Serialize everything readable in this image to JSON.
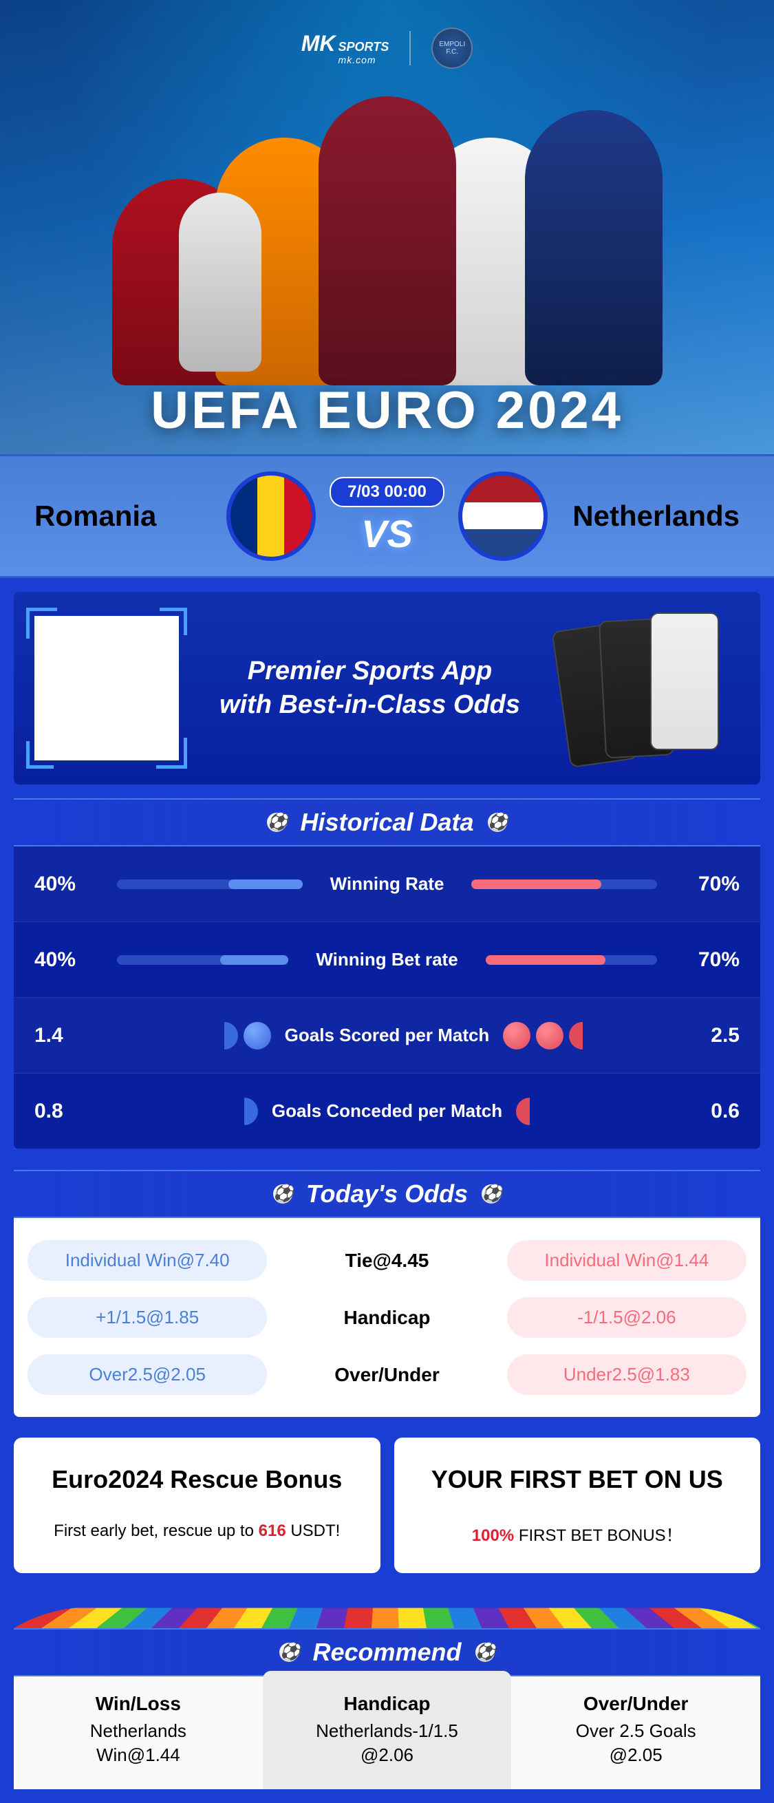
{
  "brand": {
    "name": "MK",
    "tagline": "SPORTS",
    "domain": "mk.com",
    "club_badge_text": "EMPOLI F.C."
  },
  "hero": {
    "title": "UEFA EURO 2024"
  },
  "match": {
    "team_left": "Romania",
    "team_right": "Netherlands",
    "datetime": "7/03 00:00",
    "vs": "VS"
  },
  "promo": {
    "line1": "Premier Sports App",
    "line2": "with Best-in-Class Odds"
  },
  "historical": {
    "title": "Historical Data",
    "rows": [
      {
        "label": "Winning Rate",
        "left_value": "40%",
        "right_value": "70%",
        "left_bar_pct": 40,
        "right_bar_pct": 70,
        "type": "bar"
      },
      {
        "label": "Winning Bet rate",
        "left_value": "40%",
        "right_value": "70%",
        "left_bar_pct": 40,
        "right_bar_pct": 70,
        "type": "bar"
      },
      {
        "label": "Goals Scored per Match",
        "left_value": "1.4",
        "right_value": "2.5",
        "left_balls": 1.4,
        "right_balls": 2.5,
        "type": "balls"
      },
      {
        "label": "Goals Conceded per Match",
        "left_value": "0.8",
        "right_value": "0.6",
        "left_balls": 0.8,
        "right_balls": 0.6,
        "type": "balls"
      }
    ],
    "colors": {
      "left_bar": "#5b8def",
      "right_bar": "#f86b7a",
      "track": "#2a4ac0",
      "ball_left": "#3a6ae0",
      "ball_right": "#e04a5a"
    }
  },
  "odds": {
    "title": "Today's Odds",
    "rows": [
      {
        "left": "Individual Win@7.40",
        "center": "Tie@4.45",
        "right": "Individual Win@1.44"
      },
      {
        "left": "+1/1.5@1.85",
        "center": "Handicap",
        "right": "-1/1.5@2.06"
      },
      {
        "left": "Over2.5@2.05",
        "center": "Over/Under",
        "right": "Under2.5@1.83"
      }
    ],
    "colors": {
      "left_pill_bg": "#e8f0ff",
      "left_pill_text": "#4a7fd8",
      "right_pill_bg": "#ffe8ec",
      "right_pill_text": "#f86b7a"
    }
  },
  "bonuses": [
    {
      "title": "Euro2024 Rescue Bonus",
      "sub_pre": "First early bet, rescue up to ",
      "sub_accent": "616",
      "sub_post": " USDT!"
    },
    {
      "title": "YOUR FIRST BET ON US",
      "sub_pre": "",
      "sub_accent": "100%",
      "sub_post": " FIRST BET BONUS！"
    }
  ],
  "recommend": {
    "title": "Recommend",
    "cols": [
      {
        "label": "Win/Loss",
        "value1": "Netherlands",
        "value2": "Win@1.44",
        "highlight": false
      },
      {
        "label": "Handicap",
        "value1": "Netherlands-1/1.5",
        "value2": "@2.06",
        "highlight": true
      },
      {
        "label": "Over/Under",
        "value1": "Over 2.5 Goals",
        "value2": "@2.05",
        "highlight": false
      }
    ]
  },
  "theme": {
    "primary_bg": "#1a3dd4",
    "hero_gradient_top": "#1e5799",
    "hero_gradient_bottom": "#7db9e8",
    "match_bar_bg": "#5a8fe8",
    "section_bg": "#0820a0"
  }
}
